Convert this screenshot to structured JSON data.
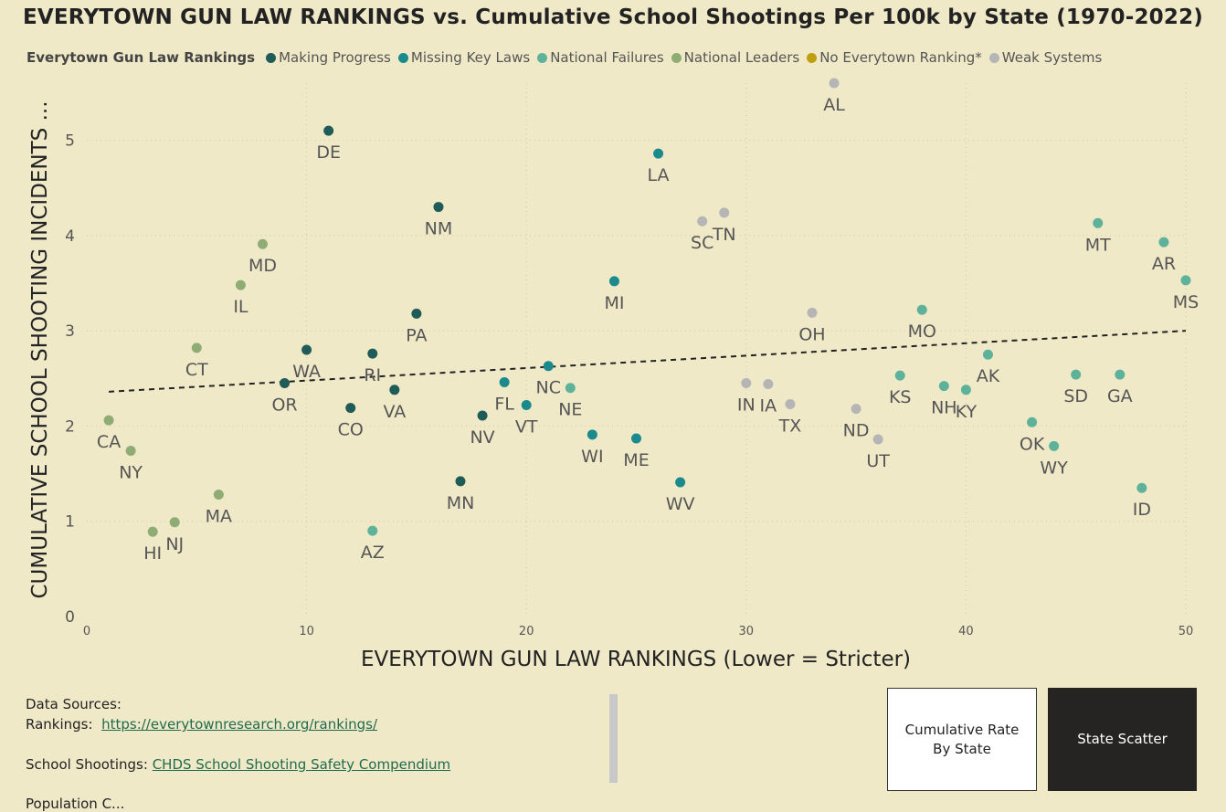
{
  "title": "EVERYTOWN GUN LAW RANKINGS vs. Cumulative School Shootings Per 100k by State (1970-2022)",
  "legend": {
    "title": "Everytown Gun Law Rankings",
    "items": [
      {
        "name": "Making Progress",
        "color": "#1f5c57"
      },
      {
        "name": "Missing Key Laws",
        "color": "#1b8a8d"
      },
      {
        "name": "National Failures",
        "color": "#5eb29a"
      },
      {
        "name": "National Leaders",
        "color": "#8eac74"
      },
      {
        "name": "No Everytown Ranking*",
        "color": "#bf9e0f"
      },
      {
        "name": "Weak Systems",
        "color": "#b5b5b5"
      }
    ]
  },
  "chart_data": {
    "type": "scatter",
    "xlabel": "EVERYTOWN GUN LAW RANKINGS (Lower = Stricter)",
    "ylabel": "CUMULATIVE SCHOOL SHOOTING INCIDENTS ...",
    "xlim": [
      0,
      50
    ],
    "ylim": [
      0,
      5.6
    ],
    "xticks": [
      0,
      10,
      20,
      30,
      40,
      50
    ],
    "yticks": [
      0,
      1,
      2,
      3,
      4,
      5
    ],
    "grid": true,
    "legend_position": "top-left",
    "trendline": {
      "style": "dashed",
      "x": [
        1,
        50
      ],
      "y": [
        2.36,
        3.0
      ]
    },
    "series": [
      {
        "name": "Making Progress",
        "color": "#1f5c57",
        "points": [
          {
            "label": "DE",
            "x": 11,
            "y": 5.1
          },
          {
            "label": "NM",
            "x": 16,
            "y": 4.3
          },
          {
            "label": "PA",
            "x": 15,
            "y": 3.18
          },
          {
            "label": "WA",
            "x": 10,
            "y": 2.8
          },
          {
            "label": "RI",
            "x": 13,
            "y": 2.76
          },
          {
            "label": "OR",
            "x": 9,
            "y": 2.45
          },
          {
            "label": "VA",
            "x": 14,
            "y": 2.38
          },
          {
            "label": "CO",
            "x": 12,
            "y": 2.19
          },
          {
            "label": "NV",
            "x": 18,
            "y": 2.11
          },
          {
            "label": "MN",
            "x": 17,
            "y": 1.42
          }
        ]
      },
      {
        "name": "Missing Key Laws",
        "color": "#1b8a8d",
        "points": [
          {
            "label": "LA",
            "x": 26,
            "y": 4.86
          },
          {
            "label": "MI",
            "x": 24,
            "y": 3.52
          },
          {
            "label": "NC",
            "x": 21,
            "y": 2.63
          },
          {
            "label": "FL",
            "x": 19,
            "y": 2.46
          },
          {
            "label": "VT",
            "x": 20,
            "y": 2.22
          },
          {
            "label": "WI",
            "x": 23,
            "y": 1.91
          },
          {
            "label": "ME",
            "x": 25,
            "y": 1.87
          },
          {
            "label": "WV",
            "x": 27,
            "y": 1.41
          }
        ]
      },
      {
        "name": "National Failures",
        "color": "#5eb29a",
        "points": [
          {
            "label": "MT",
            "x": 46,
            "y": 4.13
          },
          {
            "label": "AR",
            "x": 49,
            "y": 3.93
          },
          {
            "label": "MS",
            "x": 50,
            "y": 3.53
          },
          {
            "label": "MO",
            "x": 38,
            "y": 3.22
          },
          {
            "label": "AK",
            "x": 41,
            "y": 2.75
          },
          {
            "label": "KS",
            "x": 37,
            "y": 2.53
          },
          {
            "label": "SD",
            "x": 45,
            "y": 2.54
          },
          {
            "label": "GA",
            "x": 47,
            "y": 2.54
          },
          {
            "label": "NH",
            "x": 39,
            "y": 2.42
          },
          {
            "label": "KY",
            "x": 40,
            "y": 2.38
          },
          {
            "label": "NE",
            "x": 22,
            "y": 2.4
          },
          {
            "label": "OK",
            "x": 43,
            "y": 2.04
          },
          {
            "label": "WY",
            "x": 44,
            "y": 1.79
          },
          {
            "label": "ID",
            "x": 48,
            "y": 1.35
          },
          {
            "label": "AZ",
            "x": 13,
            "y": 0.9
          }
        ]
      },
      {
        "name": "National Leaders",
        "color": "#8eac74",
        "points": [
          {
            "label": "MD",
            "x": 8,
            "y": 3.91
          },
          {
            "label": "IL",
            "x": 7,
            "y": 3.48
          },
          {
            "label": "CT",
            "x": 5,
            "y": 2.82
          },
          {
            "label": "CA",
            "x": 1,
            "y": 2.06
          },
          {
            "label": "NY",
            "x": 2,
            "y": 1.74
          },
          {
            "label": "MA",
            "x": 6,
            "y": 1.28
          },
          {
            "label": "NJ",
            "x": 4,
            "y": 0.99
          },
          {
            "label": "HI",
            "x": 3,
            "y": 0.89
          }
        ]
      },
      {
        "name": "No Everytown Ranking*",
        "color": "#bf9e0f",
        "points": []
      },
      {
        "name": "Weak Systems",
        "color": "#b5b5b5",
        "points": [
          {
            "label": "AL",
            "x": 34,
            "y": 5.6
          },
          {
            "label": "TN",
            "x": 29,
            "y": 4.24
          },
          {
            "label": "SC",
            "x": 28,
            "y": 4.15
          },
          {
            "label": "OH",
            "x": 33,
            "y": 3.19
          },
          {
            "label": "IN",
            "x": 30,
            "y": 2.45
          },
          {
            "label": "IA",
            "x": 31,
            "y": 2.44
          },
          {
            "label": "TX",
            "x": 32,
            "y": 2.23
          },
          {
            "label": "ND",
            "x": 35,
            "y": 2.18
          },
          {
            "label": "UT",
            "x": 36,
            "y": 1.86
          }
        ]
      }
    ]
  },
  "footer": {
    "sources_heading": "Data Sources:",
    "rankings_label": "Rankings:",
    "rankings_link": "https://everytownresearch.org/rankings/",
    "shootings_label": "School Shootings:",
    "shootings_link": "CHDS School Shooting Safety Compendium",
    "population_label": "Population C..."
  },
  "buttons": {
    "cumulative": "Cumulative Rate By State",
    "scatter": "State Scatter"
  }
}
